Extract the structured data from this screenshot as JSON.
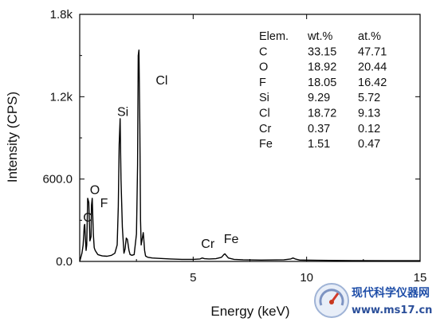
{
  "chart_data": {
    "type": "line",
    "title": "",
    "xlabel": "Energy (keV)",
    "ylabel": "Intensity (CPS)",
    "xlim": [
      0,
      15
    ],
    "ylim": [
      0,
      1800
    ],
    "x_ticks": [
      {
        "value": 5,
        "label": "5"
      },
      {
        "value": 10,
        "label": "10"
      },
      {
        "value": 15,
        "label": "15"
      }
    ],
    "y_ticks": [
      {
        "value": 0,
        "label": "0.0"
      },
      {
        "value": 600,
        "label": "600.0"
      },
      {
        "value": 1200,
        "label": "1.2k"
      },
      {
        "value": 1800,
        "label": "1.8k"
      }
    ],
    "legend": "none",
    "grid": false,
    "series": [
      {
        "line_color": "#000000",
        "x": [
          0.0,
          0.05,
          0.1,
          0.15,
          0.2,
          0.22,
          0.25,
          0.28,
          0.31,
          0.35,
          0.4,
          0.45,
          0.5,
          0.52,
          0.55,
          0.6,
          0.64,
          0.68,
          0.72,
          0.76,
          0.8,
          0.9,
          1.0,
          1.2,
          1.4,
          1.55,
          1.65,
          1.7,
          1.74,
          1.78,
          1.82,
          1.88,
          1.95,
          2.0,
          2.05,
          2.1,
          2.17,
          2.22,
          2.3,
          2.4,
          2.5,
          2.55,
          2.58,
          2.61,
          2.65,
          2.68,
          2.71,
          2.75,
          2.8,
          2.82,
          2.86,
          2.9,
          2.95,
          3.0,
          3.2,
          3.5,
          4.0,
          4.5,
          5.0,
          5.3,
          5.4,
          5.5,
          5.7,
          6.0,
          6.25,
          6.35,
          6.4,
          6.45,
          6.55,
          6.8,
          7.2,
          8.0,
          9.0,
          9.3,
          9.4,
          9.5,
          9.7,
          10.5,
          12.0,
          13.5,
          15.0
        ],
        "y": [
          0,
          30,
          60,
          120,
          260,
          270,
          170,
          80,
          120,
          460,
          430,
          150,
          180,
          410,
          460,
          200,
          100,
          80,
          70,
          60,
          50,
          45,
          40,
          38,
          45,
          60,
          120,
          400,
          850,
          1040,
          600,
          250,
          60,
          90,
          170,
          160,
          80,
          50,
          45,
          50,
          200,
          700,
          1500,
          1540,
          1000,
          300,
          120,
          160,
          210,
          170,
          80,
          40,
          35,
          30,
          25,
          22,
          18,
          15,
          15,
          18,
          25,
          20,
          18,
          20,
          30,
          50,
          55,
          45,
          25,
          15,
          12,
          10,
          12,
          18,
          25,
          18,
          10,
          8,
          6,
          5,
          5
        ]
      }
    ],
    "peak_labels": [
      {
        "text": "C",
        "x": 0.15,
        "y": 290
      },
      {
        "text": "O",
        "x": 0.45,
        "y": 490
      },
      {
        "text": "F",
        "x": 0.9,
        "y": 395
      },
      {
        "text": "Si",
        "x": 1.65,
        "y": 1060
      },
      {
        "text": "Cl",
        "x": 3.35,
        "y": 1290
      },
      {
        "text": "Cr",
        "x": 5.35,
        "y": 100
      },
      {
        "text": "Fe",
        "x": 6.35,
        "y": 135
      }
    ]
  },
  "composition_table": {
    "headers": [
      "Elem.",
      "wt.%",
      "at.%"
    ],
    "rows": [
      [
        "C",
        "33.15",
        "47.71"
      ],
      [
        "O",
        "18.92",
        "20.44"
      ],
      [
        "F",
        "18.05",
        "16.42"
      ],
      [
        "Si",
        "9.29",
        "5.72"
      ],
      [
        "Cl",
        "18.72",
        "9.13"
      ],
      [
        "Cr",
        "0.37",
        "0.12"
      ],
      [
        "Fe",
        "1.51",
        "0.47"
      ]
    ]
  },
  "watermark": {
    "title": "现代科学仪器网",
    "url": "www.ms17.cn",
    "title_color": "#1f4ea8",
    "url_color": "#2b4f9a"
  }
}
